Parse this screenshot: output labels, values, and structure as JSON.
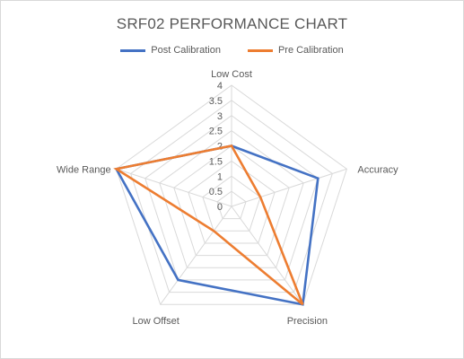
{
  "chart_data": {
    "type": "radar",
    "title": "SRF02 PERFORMANCE CHART",
    "categories": [
      "Low Cost",
      "Accuracy",
      "Precision",
      "Low Offset",
      "Wide Range"
    ],
    "series": [
      {
        "name": "Post Calibration",
        "color": "#4472c4",
        "values": [
          2,
          3,
          4,
          3,
          4
        ]
      },
      {
        "name": "Pre Calibration",
        "color": "#ed7d31",
        "values": [
          2,
          1,
          4,
          1,
          4
        ]
      }
    ],
    "rlim": [
      0,
      4
    ],
    "ticks": [
      "0",
      "0.5",
      "1",
      "1.5",
      "2",
      "2.5",
      "3",
      "3.5",
      "4"
    ],
    "legend_position": "top",
    "grid": true
  }
}
